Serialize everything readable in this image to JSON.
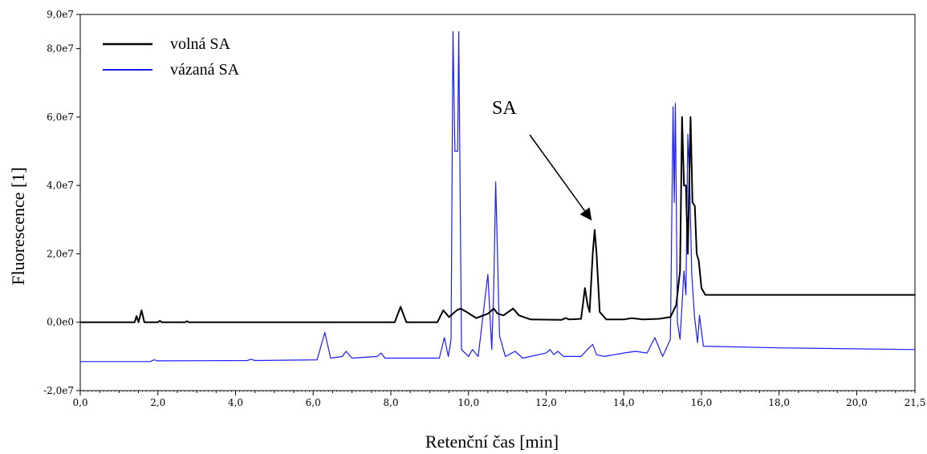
{
  "chart_data": {
    "type": "line",
    "title": "",
    "xlabel": "Retenční čas [min]",
    "ylabel": "Fluorescence [1]",
    "xlim": [
      0,
      21.5
    ],
    "ylim": [
      -20000000,
      90000000
    ],
    "x_ticks": [
      0,
      2,
      4,
      6,
      8,
      10,
      12,
      14,
      16,
      18,
      20,
      21.5
    ],
    "x_tick_labels": [
      "0,0",
      "2,0",
      "4,0",
      "6,0",
      "8,0",
      "10,0",
      "12,0",
      "14,0",
      "16,0",
      "18,0",
      "20,0",
      "21,5"
    ],
    "y_ticks": [
      -20000000,
      0,
      20000000,
      40000000,
      60000000,
      80000000,
      90000000
    ],
    "y_tick_labels": [
      "-2,0e7",
      "0,0e0",
      "2,0e7",
      "4,0e7",
      "6,0e7",
      "8,0e7",
      "9,0e7"
    ],
    "grid": false,
    "legend_position": "top-left",
    "series": [
      {
        "name": "volná SA",
        "color": "#000000",
        "points": [
          [
            0,
            0
          ],
          [
            1.4,
            0
          ],
          [
            1.45,
            1800000
          ],
          [
            1.5,
            0
          ],
          [
            1.58,
            3500000
          ],
          [
            1.65,
            0
          ],
          [
            2,
            0
          ],
          [
            2.05,
            400000
          ],
          [
            2.1,
            0
          ],
          [
            2.7,
            0
          ],
          [
            2.75,
            300000
          ],
          [
            2.8,
            0
          ],
          [
            8.1,
            0
          ],
          [
            8.25,
            4500000
          ],
          [
            8.4,
            0
          ],
          [
            9.2,
            0
          ],
          [
            9.35,
            3500000
          ],
          [
            9.5,
            1500000
          ],
          [
            9.7,
            3500000
          ],
          [
            9.8,
            4000000
          ],
          [
            9.95,
            3000000
          ],
          [
            10.2,
            1200000
          ],
          [
            10.5,
            2500000
          ],
          [
            10.65,
            4000000
          ],
          [
            10.75,
            2500000
          ],
          [
            10.9,
            2000000
          ],
          [
            11.15,
            4000000
          ],
          [
            11.3,
            2000000
          ],
          [
            11.6,
            800000
          ],
          [
            12.4,
            700000
          ],
          [
            12.5,
            1200000
          ],
          [
            12.6,
            800000
          ],
          [
            12.9,
            1000000
          ],
          [
            13.0,
            10000000
          ],
          [
            13.07,
            5000000
          ],
          [
            13.12,
            3000000
          ],
          [
            13.2,
            20000000
          ],
          [
            13.25,
            27000000
          ],
          [
            13.3,
            20000000
          ],
          [
            13.38,
            3000000
          ],
          [
            13.55,
            800000
          ],
          [
            14.0,
            800000
          ],
          [
            14.2,
            1200000
          ],
          [
            14.5,
            800000
          ],
          [
            14.9,
            1000000
          ],
          [
            15.2,
            1500000
          ],
          [
            15.35,
            5000000
          ],
          [
            15.45,
            15000000
          ],
          [
            15.5,
            60000000
          ],
          [
            15.55,
            40000000
          ],
          [
            15.6,
            40000000
          ],
          [
            15.65,
            20000000
          ],
          [
            15.72,
            60000000
          ],
          [
            15.77,
            35000000
          ],
          [
            15.83,
            34000000
          ],
          [
            15.88,
            20000000
          ],
          [
            15.93,
            18000000
          ],
          [
            16.0,
            10000000
          ],
          [
            16.1,
            8000000
          ],
          [
            18.0,
            8000000
          ],
          [
            21.5,
            8000000
          ]
        ]
      },
      {
        "name": "vázaná SA",
        "color": "#1a1aff",
        "points": [
          [
            0,
            -11500000
          ],
          [
            1.8,
            -11500000
          ],
          [
            1.9,
            -11000000
          ],
          [
            2.0,
            -11300000
          ],
          [
            4.3,
            -11200000
          ],
          [
            4.4,
            -10800000
          ],
          [
            4.5,
            -11200000
          ],
          [
            6.1,
            -11000000
          ],
          [
            6.3,
            -3000000
          ],
          [
            6.45,
            -10500000
          ],
          [
            6.75,
            -10000000
          ],
          [
            6.85,
            -8500000
          ],
          [
            7.0,
            -10500000
          ],
          [
            7.65,
            -10000000
          ],
          [
            7.75,
            -9000000
          ],
          [
            7.85,
            -10500000
          ],
          [
            9.25,
            -10500000
          ],
          [
            9.38,
            -4500000
          ],
          [
            9.48,
            -10000000
          ],
          [
            9.55,
            -5000000
          ],
          [
            9.6,
            85000000
          ],
          [
            9.65,
            50000000
          ],
          [
            9.72,
            50000000
          ],
          [
            9.75,
            85000000
          ],
          [
            9.82,
            -8000000
          ],
          [
            10.0,
            -10000000
          ],
          [
            10.1,
            -8000000
          ],
          [
            10.25,
            -10000000
          ],
          [
            10.5,
            14000000
          ],
          [
            10.6,
            -8000000
          ],
          [
            10.65,
            10000000
          ],
          [
            10.7,
            41000000
          ],
          [
            10.8,
            -4000000
          ],
          [
            10.95,
            -10000000
          ],
          [
            11.2,
            -8500000
          ],
          [
            11.4,
            -10500000
          ],
          [
            12.0,
            -9000000
          ],
          [
            12.1,
            -8000000
          ],
          [
            12.2,
            -9500000
          ],
          [
            12.3,
            -8500000
          ],
          [
            12.45,
            -10000000
          ],
          [
            12.9,
            -10000000
          ],
          [
            13.1,
            -7500000
          ],
          [
            13.2,
            -6500000
          ],
          [
            13.3,
            -9500000
          ],
          [
            13.5,
            -10000000
          ],
          [
            14.0,
            -9000000
          ],
          [
            14.3,
            -8500000
          ],
          [
            14.6,
            -9000000
          ],
          [
            14.8,
            -4500000
          ],
          [
            15.0,
            -10000000
          ],
          [
            15.2,
            -5000000
          ],
          [
            15.27,
            63000000
          ],
          [
            15.3,
            35000000
          ],
          [
            15.33,
            64000000
          ],
          [
            15.38,
            0
          ],
          [
            15.45,
            -5000000
          ],
          [
            15.55,
            15000000
          ],
          [
            15.6,
            8000000
          ],
          [
            15.65,
            55000000
          ],
          [
            15.7,
            40000000
          ],
          [
            15.75,
            14000000
          ],
          [
            15.82,
            2000000
          ],
          [
            15.9,
            -6000000
          ],
          [
            15.95,
            2000000
          ],
          [
            16.05,
            -7000000
          ],
          [
            18.0,
            -7500000
          ],
          [
            21.5,
            -8000000
          ]
        ]
      }
    ],
    "annotations": [
      {
        "text": "SA",
        "arrow_from": [
          13.2,
          64000000
        ],
        "arrow_to": [
          13.26,
          30000000
        ]
      }
    ]
  }
}
